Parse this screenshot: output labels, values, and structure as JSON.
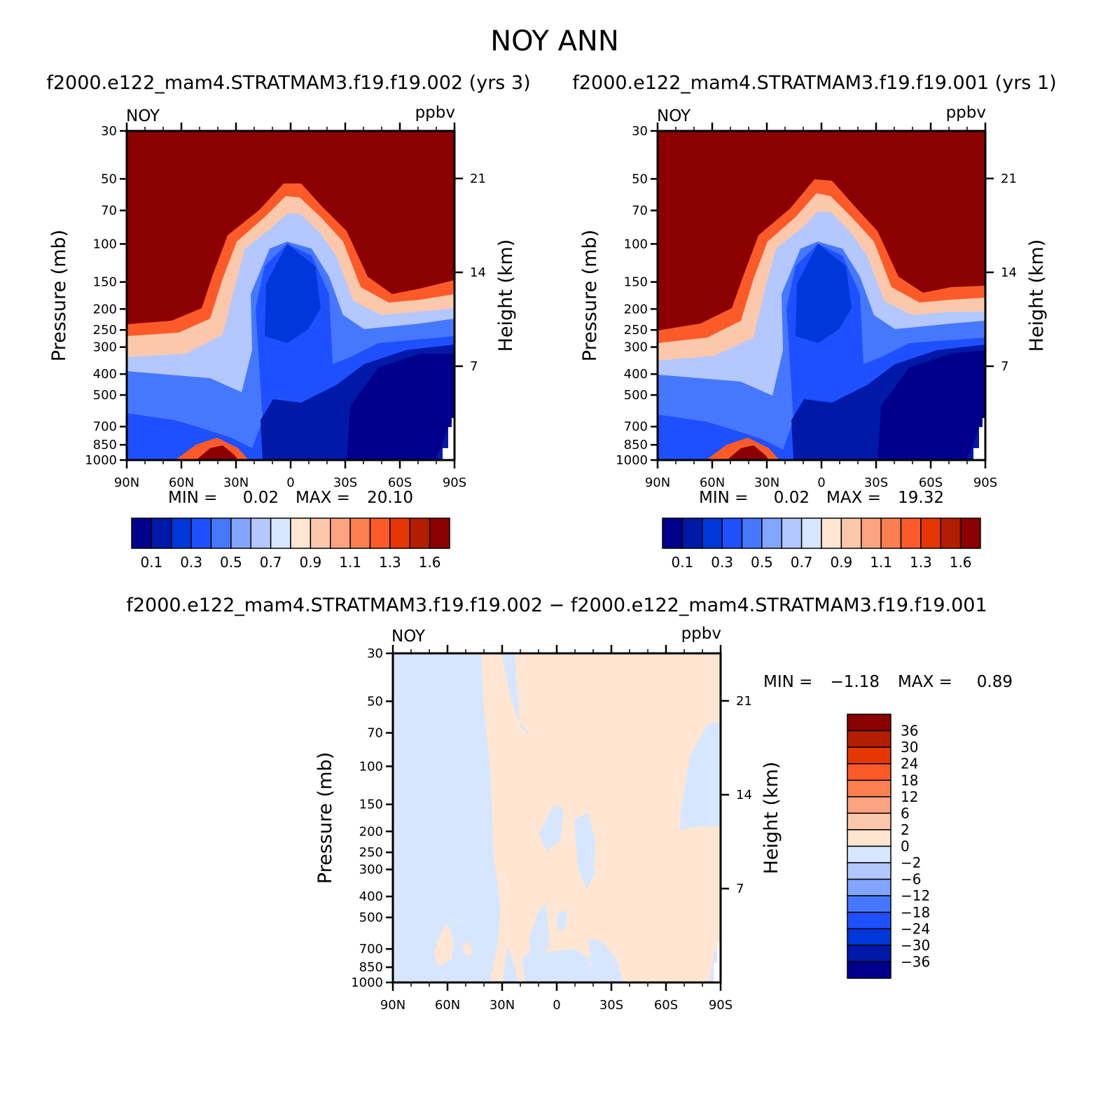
{
  "title": "NOY ANN",
  "chart_data": [
    {
      "type": "heatmap",
      "title": "f2000.e122_mam4.STRATMAM3.f19.f19.002 (yrs 3)",
      "left_label": "NOY",
      "right_label": "ppbv",
      "xlabel": "",
      "ylabel": "Pressure (mb)",
      "ylabel_right": "Height (km)",
      "x_ticks": [
        "90N",
        "60N",
        "30N",
        "0",
        "30S",
        "60S",
        "90S"
      ],
      "y_ticks": [
        "30",
        "50",
        "70",
        "100",
        "150",
        "200",
        "250",
        "300",
        "400",
        "500",
        "700",
        "850",
        "1000"
      ],
      "y_ticks_right": [
        "21",
        "14",
        "7"
      ],
      "ylim": [
        1000,
        30
      ],
      "min_label": "MIN =",
      "min_value": "0.02",
      "max_label": "MAX =",
      "max_value": "20.10",
      "colorbar_labels": [
        "0.1",
        "0.3",
        "0.5",
        "0.7",
        "0.9",
        "1.1",
        "1.3",
        "1.6"
      ]
    },
    {
      "type": "heatmap",
      "title": "f2000.e122_mam4.STRATMAM3.f19.f19.001 (yrs 1)",
      "left_label": "NOY",
      "right_label": "ppbv",
      "xlabel": "",
      "ylabel": "Pressure (mb)",
      "ylabel_right": "Height (km)",
      "x_ticks": [
        "90N",
        "60N",
        "30N",
        "0",
        "30S",
        "60S",
        "90S"
      ],
      "y_ticks": [
        "30",
        "50",
        "70",
        "100",
        "150",
        "200",
        "250",
        "300",
        "400",
        "500",
        "700",
        "850",
        "1000"
      ],
      "y_ticks_right": [
        "21",
        "14",
        "7"
      ],
      "ylim": [
        1000,
        30
      ],
      "min_label": "MIN =",
      "min_value": "0.02",
      "max_label": "MAX =",
      "max_value": "19.32",
      "colorbar_labels": [
        "0.1",
        "0.3",
        "0.5",
        "0.7",
        "0.9",
        "1.1",
        "1.3",
        "1.6"
      ]
    },
    {
      "type": "heatmap",
      "title": "f2000.e122_mam4.STRATMAM3.f19.f19.002 − f2000.e122_mam4.STRATMAM3.f19.f19.001",
      "left_label": "NOY",
      "right_label": "ppbv",
      "xlabel": "",
      "ylabel": "Pressure (mb)",
      "ylabel_right": "Height (km)",
      "x_ticks": [
        "90N",
        "60N",
        "30N",
        "0",
        "30S",
        "60S",
        "90S"
      ],
      "y_ticks": [
        "30",
        "50",
        "70",
        "100",
        "150",
        "200",
        "250",
        "300",
        "400",
        "500",
        "700",
        "850",
        "1000"
      ],
      "y_ticks_right": [
        "21",
        "14",
        "7"
      ],
      "ylim": [
        1000,
        30
      ],
      "min_label": "MIN =",
      "min_value": "−1.18",
      "max_label": "MAX =",
      "max_value": "0.89",
      "colorbar_labels": [
        "36",
        "30",
        "24",
        "18",
        "12",
        "6",
        "2",
        "0",
        "−2",
        "−6",
        "−12",
        "−18",
        "−24",
        "−30",
        "−36"
      ]
    }
  ],
  "colors": {
    "seq_palette": [
      "#00008c",
      "#0019a8",
      "#0037da",
      "#1e50ff",
      "#4678ff",
      "#82a5ff",
      "#b4c8ff",
      "#d7e6ff",
      "#fee6d2",
      "#fcc8ac",
      "#fca382",
      "#fc7f50",
      "#fc5a28",
      "#e63700",
      "#b41e00",
      "#8b0000"
    ],
    "diff_palette_top_to_bottom": [
      "#8b0000",
      "#b41e00",
      "#e63700",
      "#fc5a28",
      "#fc7f50",
      "#fca382",
      "#fcc8ac",
      "#fee6d2",
      "#d7e6ff",
      "#b4c8ff",
      "#82a5ff",
      "#4678ff",
      "#1e50ff",
      "#0037da",
      "#0019a8",
      "#00008c"
    ]
  }
}
